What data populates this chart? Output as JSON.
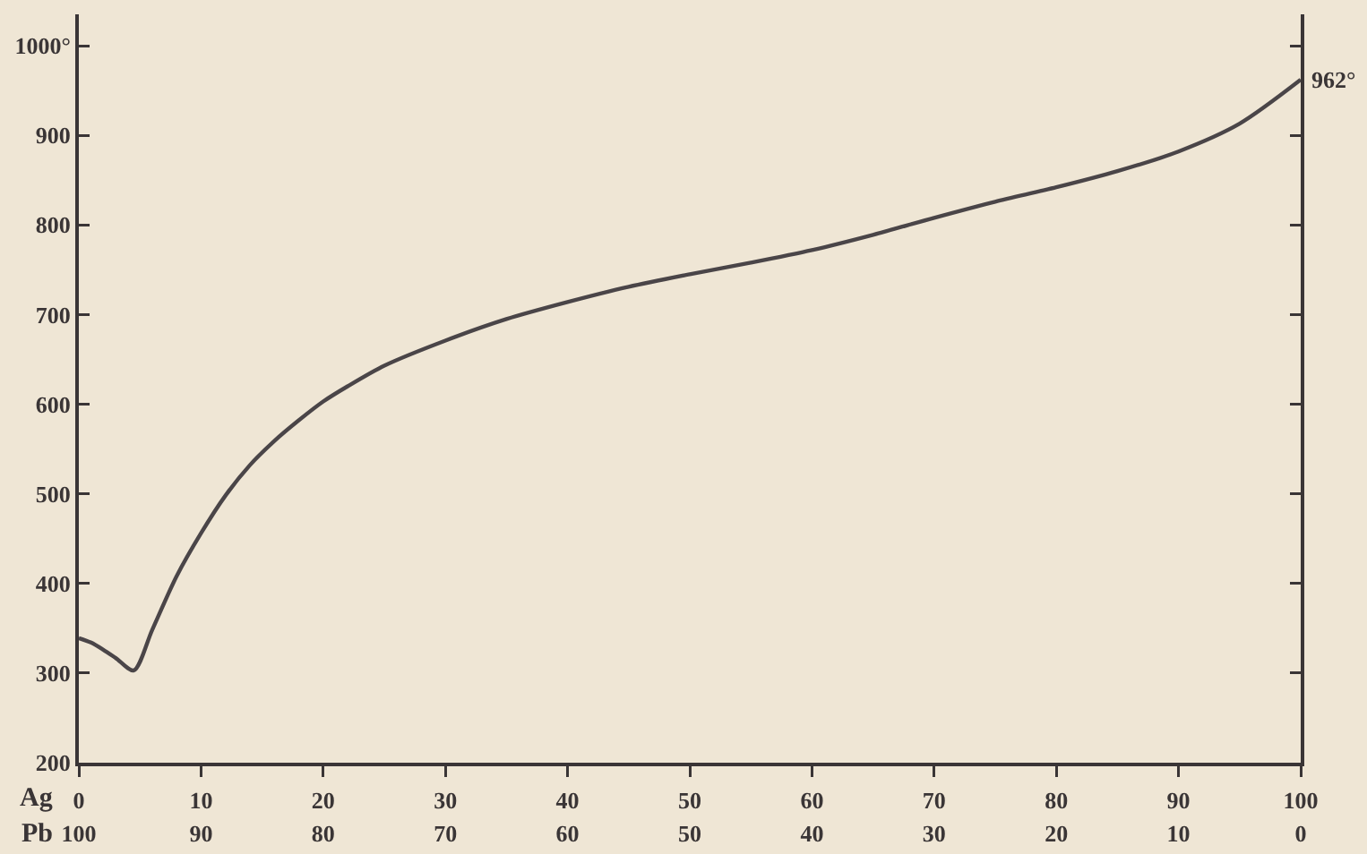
{
  "chart_data": {
    "type": "line",
    "xlabel": "Ag",
    "x2label": "Pb",
    "x": [
      0,
      1,
      2,
      3,
      4.5,
      6,
      8,
      10,
      12,
      14,
      16,
      18,
      20,
      22,
      25,
      30,
      35,
      40,
      45,
      50,
      55,
      60,
      65,
      70,
      75,
      80,
      85,
      90,
      95,
      100
    ],
    "series": [
      {
        "color": "#4a4548",
        "values": [
          339,
          334,
          326,
          317,
          303,
          348,
          408,
          456,
          498,
          532,
          559,
          582,
          603,
          620,
          643,
          671,
          695,
          714,
          731,
          745,
          758,
          772,
          789,
          808,
          826,
          842,
          860,
          882,
          913,
          962
        ]
      }
    ],
    "xlim": [
      0,
      100
    ],
    "xticks": [
      0,
      10,
      20,
      30,
      40,
      50,
      60,
      70,
      80,
      90,
      100
    ],
    "x2lim": [
      100,
      0
    ],
    "x2ticks": [
      100,
      90,
      80,
      70,
      60,
      50,
      40,
      30,
      20,
      10,
      0
    ],
    "ylim": [
      200,
      1035
    ],
    "yticks": [
      200,
      300,
      400,
      500,
      600,
      700,
      800,
      900,
      {
        "value": 1000,
        "label": "1000°"
      }
    ],
    "annotations": [
      {
        "text": "962°",
        "x": 100,
        "y": 962
      }
    ]
  }
}
